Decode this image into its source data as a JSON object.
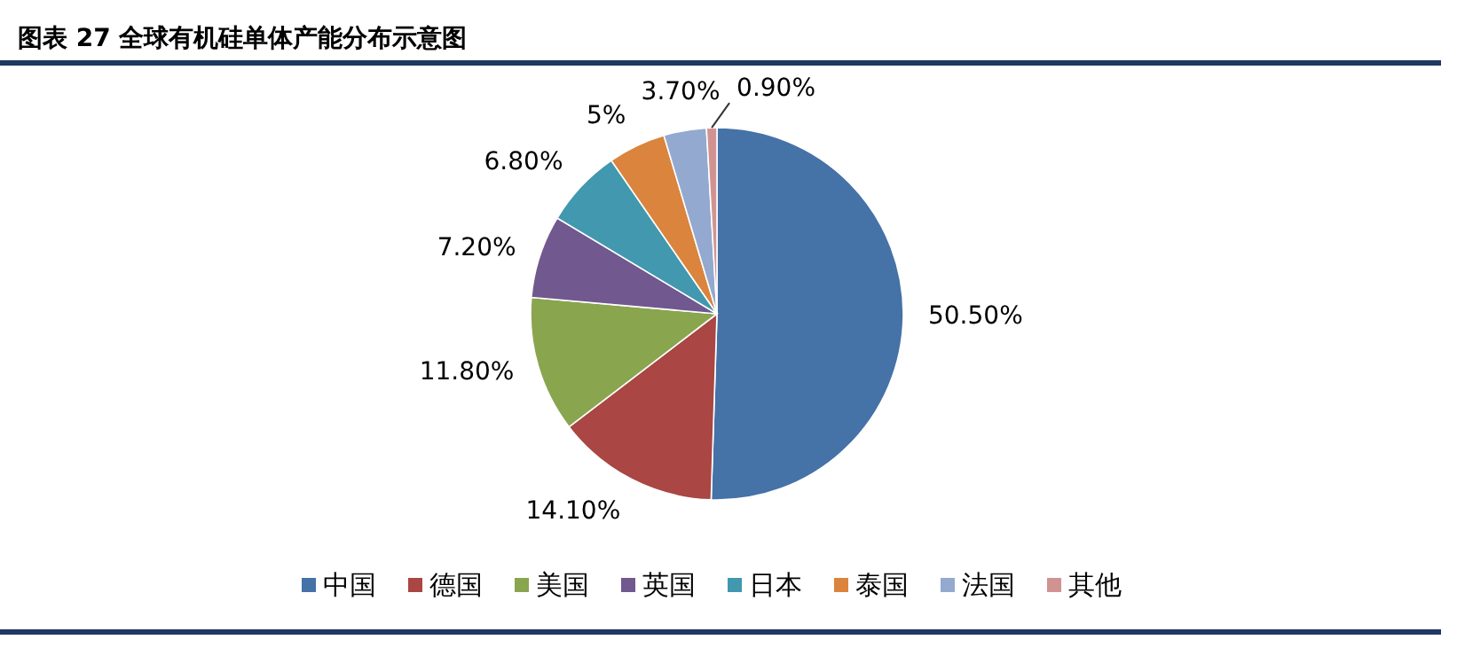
{
  "chart_data": {
    "type": "pie",
    "title": "图表 27 全球有机硅单体产能分布示意图",
    "categories": [
      "中国",
      "德国",
      "美国",
      "英国",
      "日本",
      "泰国",
      "法国",
      "其他"
    ],
    "values": [
      50.5,
      14.1,
      11.8,
      7.2,
      6.8,
      5,
      3.7,
      0.9
    ],
    "colors": [
      "#4572a7",
      "#aa4643",
      "#89a54e",
      "#71588f",
      "#4198af",
      "#db843d",
      "#93a9cf",
      "#d19392"
    ],
    "value_labels": [
      "50.50%",
      "14.10%",
      "11.80%",
      "7.20%",
      "6.80%",
      "5%",
      "3.70%",
      "0.90%"
    ],
    "legend": "bottom"
  }
}
